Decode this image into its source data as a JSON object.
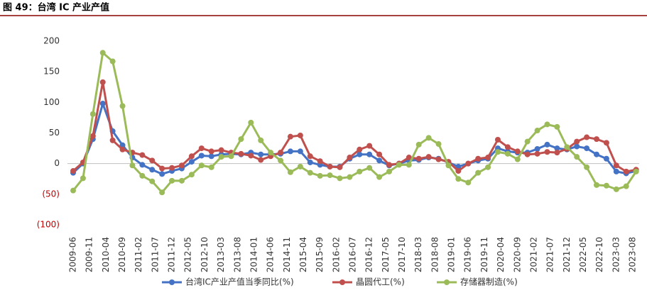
{
  "chart_data": {
    "type": "line",
    "header": "图 49：台湾 IC 产业产值",
    "x": [
      "2009-06",
      "2009-09",
      "2009-12",
      "2010-03",
      "2010-06",
      "2010-09",
      "2010-12",
      "2011-03",
      "2011-06",
      "2011-09",
      "2011-12",
      "2012-03",
      "2012-06",
      "2012-09",
      "2012-12",
      "2013-03",
      "2013-06",
      "2013-09",
      "2013-12",
      "2014-03",
      "2014-06",
      "2014-09",
      "2014-12",
      "2015-03",
      "2015-06",
      "2015-09",
      "2015-12",
      "2016-03",
      "2016-06",
      "2016-09",
      "2016-12",
      "2017-03",
      "2017-06",
      "2017-09",
      "2017-12",
      "2018-03",
      "2018-06",
      "2018-09",
      "2018-12",
      "2019-03",
      "2019-06",
      "2019-09",
      "2019-12",
      "2020-03",
      "2020-06",
      "2020-09",
      "2020-12",
      "2021-03",
      "2021-06",
      "2021-09",
      "2021-12",
      "2022-03",
      "2022-06",
      "2022-09",
      "2022-12",
      "2023-03",
      "2023-06",
      "2023-09"
    ],
    "series": [
      {
        "name": "台湾IC产业产值当季同比(%)",
        "color": "#4472c4",
        "values": [
          -15,
          0,
          40,
          98,
          53,
          30,
          10,
          -2,
          -10,
          -17,
          -12,
          -8,
          3,
          13,
          12,
          15,
          16,
          15,
          18,
          15,
          15,
          16,
          20,
          20,
          2,
          -2,
          -5,
          -5,
          8,
          15,
          15,
          5,
          -3,
          0,
          5,
          6,
          10,
          8,
          2,
          -5,
          0,
          5,
          8,
          25,
          20,
          18,
          18,
          24,
          31,
          25,
          23,
          28,
          25,
          15,
          8,
          -13,
          -16,
          -12
        ]
      },
      {
        "name": "晶圆代工(%)",
        "color": "#c0504d",
        "values": [
          -12,
          2,
          45,
          133,
          38,
          23,
          18,
          14,
          5,
          -8,
          -7,
          -3,
          12,
          25,
          20,
          22,
          18,
          16,
          13,
          6,
          12,
          18,
          44,
          46,
          12,
          4,
          -5,
          -6,
          10,
          23,
          29,
          15,
          -2,
          0,
          10,
          8,
          11,
          7,
          3,
          -12,
          0,
          8,
          10,
          39,
          27,
          20,
          15,
          16,
          19,
          18,
          24,
          36,
          43,
          40,
          34,
          -3,
          -13,
          -10
        ]
      },
      {
        "name": "存储器制造(%)",
        "color": "#9bbb59",
        "values": [
          -44,
          -24,
          81,
          181,
          167,
          94,
          -3,
          -20,
          -29,
          -47,
          -28,
          -28,
          -18,
          -3,
          -6,
          11,
          12,
          40,
          67,
          38,
          18,
          5,
          -14,
          -5,
          -15,
          -20,
          -19,
          -24,
          -22,
          -13,
          -7,
          -22,
          -13,
          -2,
          -2,
          31,
          42,
          32,
          -3,
          -25,
          -31,
          -15,
          -6,
          19,
          16,
          7,
          36,
          54,
          64,
          60,
          27,
          11,
          -6,
          -35,
          -36,
          -42,
          -37,
          -13
        ]
      }
    ],
    "xlim": [
      "2009-06",
      "2023-08"
    ],
    "xticks": [
      "2009-06",
      "2009-11",
      "2010-04",
      "2010-09",
      "2011-02",
      "2011-07",
      "2011-12",
      "2012-05",
      "2012-10",
      "2013-03",
      "2013-08",
      "2014-01",
      "2014-06",
      "2014-11",
      "2015-04",
      "2015-09",
      "2016-02",
      "2016-07",
      "2016-12",
      "2017-05",
      "2017-10",
      "2018-03",
      "2018-08",
      "2019-01",
      "2019-06",
      "2019-11",
      "2020-04",
      "2020-09",
      "2021-02",
      "2021-07",
      "2021-12",
      "2022-05",
      "2022-10",
      "2023-03",
      "2023-08"
    ],
    "ylim": [
      -100,
      200
    ],
    "yticks": [
      {
        "value": -100,
        "label": "(100)"
      },
      {
        "value": -50,
        "label": "(50)"
      },
      0,
      50,
      100,
      150,
      200
    ],
    "negative_tick_color": "#c00000",
    "grid": false
  }
}
